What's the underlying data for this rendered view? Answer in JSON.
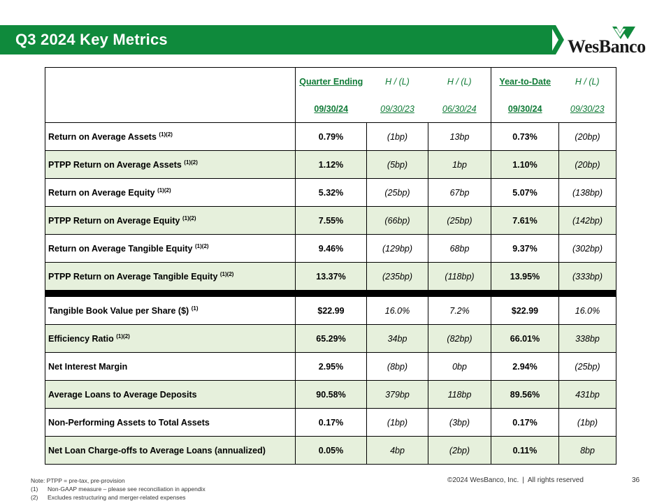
{
  "title": "Q3 2024 Key Metrics",
  "logo": {
    "text": "WesBanco"
  },
  "colors": {
    "brand_green": "#0f8a3c",
    "header_text": "#0f7a36",
    "row_shade": "#e6f0dc"
  },
  "table": {
    "header_top": [
      "Quarter Ending",
      "H / (L)",
      "H / (L)",
      "Year-to-Date",
      "H / (L)"
    ],
    "header_bottom": [
      "09/30/24",
      "09/30/23",
      "06/30/24",
      "09/30/24",
      "09/30/23"
    ],
    "rows_group1": [
      {
        "label": "Return on Average Assets",
        "note": "(1)(2)",
        "values": [
          "0.79%",
          "(1bp)",
          "13bp",
          "0.73%",
          "(20bp)"
        ]
      },
      {
        "label": "PTPP Return on Average Assets",
        "note": "(1)(2)",
        "values": [
          "1.12%",
          "(5bp)",
          "1bp",
          "1.10%",
          "(20bp)"
        ]
      },
      {
        "label": "Return on Average Equity",
        "note": "(1)(2)",
        "values": [
          "5.32%",
          "(25bp)",
          "67bp",
          "5.07%",
          "(138bp)"
        ]
      },
      {
        "label": "PTPP Return on Average Equity",
        "note": "(1)(2)",
        "values": [
          "7.55%",
          "(66bp)",
          "(25bp)",
          "7.61%",
          "(142bp)"
        ]
      },
      {
        "label": "Return on Average Tangible Equity",
        "note": "(1)(2)",
        "values": [
          "9.46%",
          "(129bp)",
          "68bp",
          "9.37%",
          "(302bp)"
        ]
      },
      {
        "label": "PTPP Return on Average Tangible Equity",
        "note": "(1)(2)",
        "values": [
          "13.37%",
          "(235bp)",
          "(118bp)",
          "13.95%",
          "(333bp)"
        ]
      }
    ],
    "rows_group2": [
      {
        "label": "Tangible Book Value per Share ($)",
        "note": "(1)",
        "values": [
          "$22.99",
          "16.0%",
          "7.2%",
          "$22.99",
          "16.0%"
        ]
      },
      {
        "label": "Efficiency Ratio",
        "note": "(1)(2)",
        "values": [
          "65.29%",
          "34bp",
          "(82bp)",
          "66.01%",
          "338bp"
        ]
      },
      {
        "label": "Net Interest Margin",
        "note": "",
        "values": [
          "2.95%",
          "(8bp)",
          "0bp",
          "2.94%",
          "(25bp)"
        ]
      },
      {
        "label": "Average Loans to Average Deposits",
        "note": "",
        "values": [
          "90.58%",
          "379bp",
          "118bp",
          "89.56%",
          "431bp"
        ]
      },
      {
        "label": "Non-Performing Assets to Total Assets",
        "note": "",
        "values": [
          "0.17%",
          "(1bp)",
          "(3bp)",
          "0.17%",
          "(1bp)"
        ]
      },
      {
        "label": "Net Loan Charge-offs to Average Loans (annualized)",
        "note": "",
        "values": [
          "0.05%",
          "4bp",
          "(2bp)",
          "0.11%",
          "8bp"
        ]
      }
    ]
  },
  "footnotes": {
    "note": "Note:  PTPP = pre-tax, pre-provision",
    "items": [
      {
        "num": "(1)",
        "text": "Non-GAAP measure – please see reconciliation in appendix"
      },
      {
        "num": "(2)",
        "text": "Excludes restructuring and merger-related expenses"
      }
    ]
  },
  "footer": {
    "copyright": "©2024 WesBanco, Inc.",
    "separator": "|",
    "rights": "All rights reserved",
    "page_number": "36"
  }
}
